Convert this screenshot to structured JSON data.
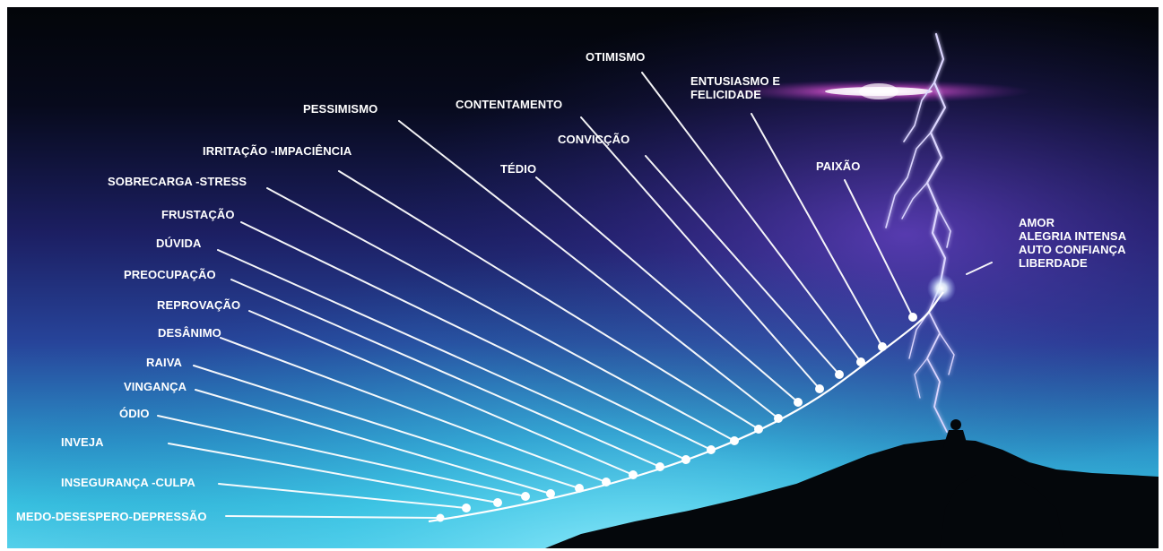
{
  "scale": {
    "items": [
      {
        "id": "medo",
        "lines": [
          "MEDO-DESESPERO-DEPRESSÃO"
        ]
      },
      {
        "id": "inseguranca",
        "lines": [
          "INSEGURANÇA -CULPA"
        ]
      },
      {
        "id": "inveja",
        "lines": [
          "INVEJA"
        ]
      },
      {
        "id": "odio",
        "lines": [
          "ÓDIO"
        ]
      },
      {
        "id": "vinganca",
        "lines": [
          "VINGANÇA"
        ]
      },
      {
        "id": "raiva",
        "lines": [
          "RAIVA"
        ]
      },
      {
        "id": "desanimo",
        "lines": [
          "DESÂNIMO"
        ]
      },
      {
        "id": "reprovacao",
        "lines": [
          "REPROVAÇÃO"
        ]
      },
      {
        "id": "preocupacao",
        "lines": [
          "PREOCUPAÇÃO"
        ]
      },
      {
        "id": "duvida",
        "lines": [
          "DÚVIDA"
        ]
      },
      {
        "id": "frustacao",
        "lines": [
          "FRUSTAÇÃO"
        ]
      },
      {
        "id": "sobrecarga",
        "lines": [
          "SOBRECARGA -STRESS"
        ]
      },
      {
        "id": "irritacao",
        "lines": [
          "IRRITAÇÃO -IMPACIÊNCIA"
        ]
      },
      {
        "id": "pessimismo",
        "lines": [
          "PESSIMISMO"
        ]
      },
      {
        "id": "tedio",
        "lines": [
          "TÉDIO"
        ]
      },
      {
        "id": "contentamento",
        "lines": [
          "CONTENTAMENTO"
        ]
      },
      {
        "id": "conviccao",
        "lines": [
          "CONVICÇÃO"
        ]
      },
      {
        "id": "otimismo",
        "lines": [
          "OTIMISMO"
        ]
      },
      {
        "id": "entusiasmo",
        "lines": [
          "ENTUSIASMO E",
          "FELICIDADE"
        ]
      },
      {
        "id": "paixao",
        "lines": [
          "PAIXÃO"
        ]
      },
      {
        "id": "amor",
        "lines": [
          "AMOR",
          "ALEGRIA INTENSA",
          "AUTO CONFIANÇA",
          "LIBERDADE"
        ]
      }
    ]
  },
  "colors": {
    "sky_top": "#05070f",
    "sky_mid": "#1a1f5e",
    "sky_violet": "#3a2a8a",
    "horizon": "#2fb6d8",
    "horizon_glow": "#7fe3f5",
    "rock": "#05080c",
    "text": "#ffffff",
    "flare": "#ff66ff"
  }
}
